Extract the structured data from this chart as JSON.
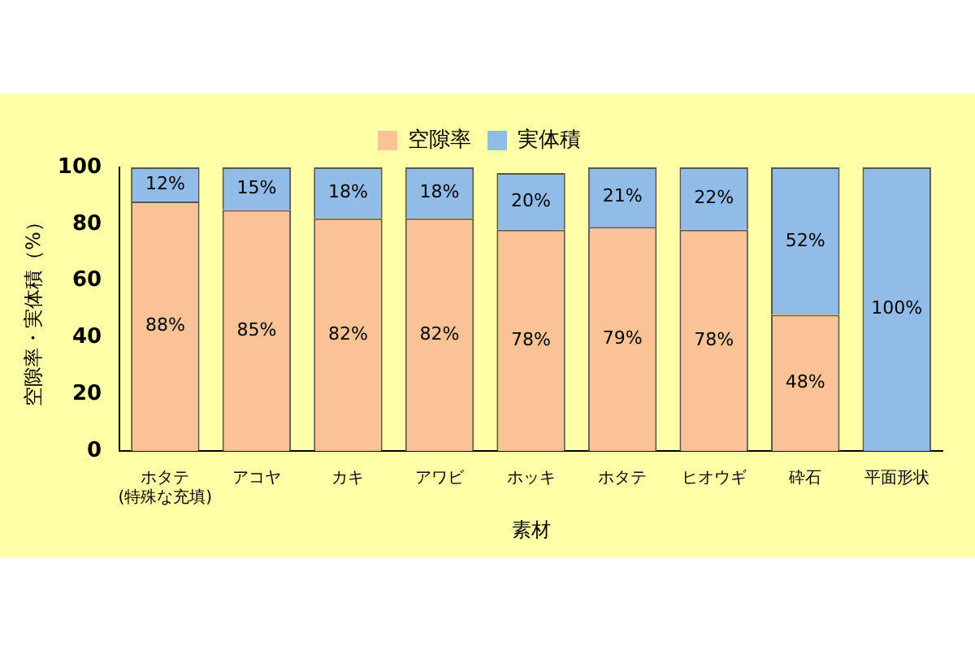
{
  "chart_data": {
    "type": "bar",
    "stacked": true,
    "categories": [
      "ホタテ\n(特殊な充填)",
      "アコヤ",
      "カキ",
      "アワビ",
      "ホッキ",
      "ホタテ",
      "ヒオウギ",
      "砕石",
      "平面形状"
    ],
    "series": [
      {
        "name": "空隙率",
        "color": "#f9c396",
        "values": [
          88,
          85,
          82,
          82,
          78,
          79,
          78,
          48,
          0
        ],
        "value_labels": [
          "88%",
          "85%",
          "82%",
          "82%",
          "78%",
          "79%",
          "78%",
          "48%",
          null
        ]
      },
      {
        "name": "実体積",
        "color": "#92bce8",
        "values": [
          12,
          15,
          18,
          18,
          20,
          21,
          22,
          52,
          100
        ],
        "value_labels": [
          "12%",
          "15%",
          "18%",
          "18%",
          "20%",
          "21%",
          "22%",
          "52%",
          "100%"
        ]
      }
    ],
    "xlabel": "素材",
    "ylabel": "空隙率・実体積（%）",
    "ylim": [
      0,
      100
    ],
    "yticks": [
      0,
      20,
      40,
      60,
      80,
      100
    ],
    "grid": false,
    "legend": "top"
  }
}
